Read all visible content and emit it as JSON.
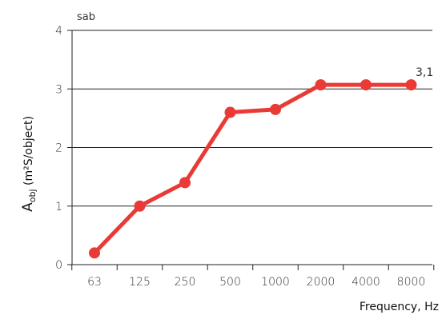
{
  "chart_data": {
    "type": "line",
    "categories": [
      "63",
      "125",
      "250",
      "500",
      "1000",
      "2000",
      "4000",
      "8000"
    ],
    "series": [
      {
        "values": [
          0.2,
          1.0,
          1.4,
          2.6,
          2.65,
          3.07,
          3.07,
          3.07
        ]
      }
    ],
    "ylim": [
      0,
      4
    ],
    "yticks": [
      0,
      1,
      2,
      3,
      4
    ],
    "y_unit": "sab",
    "ylabel_main": "A",
    "ylabel_sub": "obj",
    "ylabel_rest": " (m²S/object)",
    "xlabel": "Frequency, Hz",
    "annotation": "3,1",
    "grid": true,
    "color": "#ea3a36"
  }
}
